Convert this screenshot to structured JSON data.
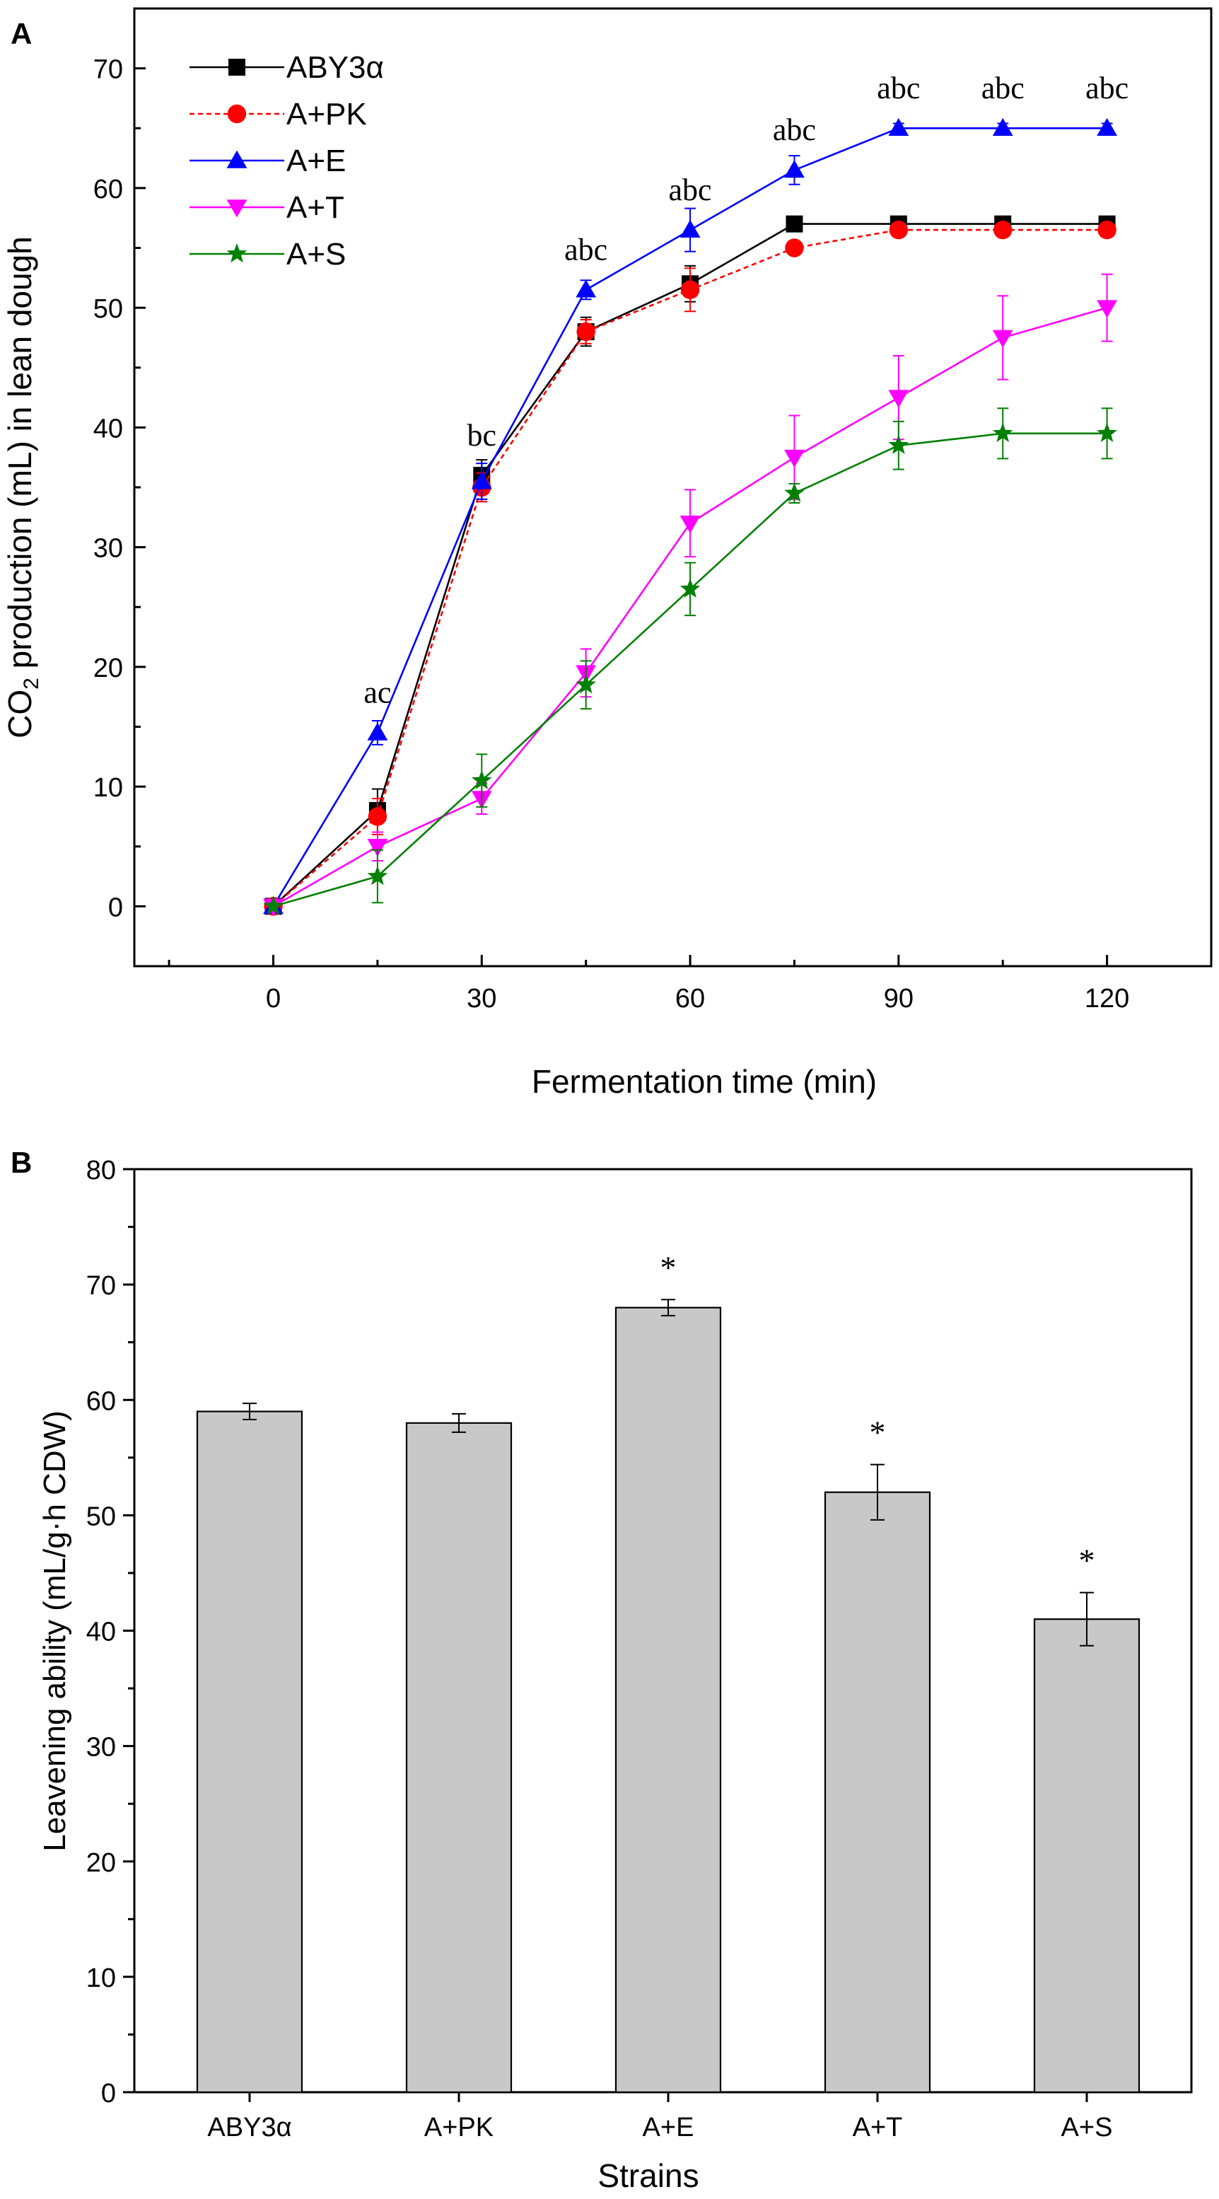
{
  "chart_data": [
    {
      "panel_label": "A",
      "type": "line",
      "xlabel": "Fermentation time (min)",
      "ylabel_pre": "CO",
      "ylabel_sub": "2",
      "ylabel_post": " production (mL) in lean dough",
      "x": [
        0,
        15,
        30,
        45,
        60,
        75,
        90,
        105,
        120
      ],
      "xlim": [
        -20,
        135
      ],
      "ylim": [
        -5,
        75
      ],
      "xticks": [
        0,
        30,
        60,
        90,
        120
      ],
      "yticks": [
        0,
        10,
        20,
        30,
        40,
        50,
        60,
        70
      ],
      "legend_position": "top-left",
      "series": [
        {
          "name": "ABY3α",
          "color": "#000000",
          "marker": "square",
          "dash": "solid",
          "values": [
            0,
            8,
            36,
            48,
            52,
            57,
            57,
            57,
            57
          ],
          "errors": [
            0,
            1.8,
            1.3,
            1.2,
            1.5,
            0.3,
            0.3,
            0.3,
            0.3
          ]
        },
        {
          "name": "A+PK",
          "color": "#ff0000",
          "marker": "circle",
          "dash": "dashed",
          "values": [
            0,
            7.5,
            35,
            48,
            51.5,
            55,
            56.5,
            56.5,
            56.5
          ],
          "errors": [
            0,
            1.5,
            1.2,
            1.0,
            1.8,
            0.5,
            0.5,
            0.5,
            0.5
          ]
        },
        {
          "name": "A+E",
          "color": "#0000ff",
          "marker": "triangle-up",
          "dash": "solid",
          "values": [
            0,
            14.5,
            35.5,
            51.5,
            56.5,
            61.5,
            65,
            65,
            65
          ],
          "errors": [
            0,
            1.0,
            1.5,
            0.8,
            1.8,
            1.2,
            0.4,
            0.4,
            0.4
          ]
        },
        {
          "name": "A+T",
          "color": "#ff00ff",
          "marker": "triangle-down",
          "dash": "solid",
          "values": [
            0,
            5,
            9,
            19.5,
            32,
            37.5,
            42.5,
            47.5,
            50
          ],
          "errors": [
            0,
            1.2,
            1.3,
            2.0,
            2.8,
            3.5,
            3.5,
            3.5,
            2.8
          ]
        },
        {
          "name": "A+S",
          "color": "#008000",
          "marker": "star",
          "dash": "solid",
          "values": [
            0,
            2.5,
            10.5,
            18.5,
            26.5,
            34.5,
            38.5,
            39.5,
            39.5
          ],
          "errors": [
            0,
            2.2,
            2.2,
            2.0,
            2.2,
            0.8,
            2.0,
            2.1,
            2.1
          ]
        }
      ],
      "annotations": [
        {
          "x": 15,
          "y": 17,
          "text": "ac"
        },
        {
          "x": 30,
          "y": 38.5,
          "text": "bc"
        },
        {
          "x": 45,
          "y": 54,
          "text": "abc"
        },
        {
          "x": 60,
          "y": 59,
          "text": "abc"
        },
        {
          "x": 75,
          "y": 64,
          "text": "abc"
        },
        {
          "x": 90,
          "y": 67.5,
          "text": "abc"
        },
        {
          "x": 105,
          "y": 67.5,
          "text": "abc"
        },
        {
          "x": 120,
          "y": 67.5,
          "text": "abc"
        }
      ]
    },
    {
      "panel_label": "B",
      "type": "bar",
      "xlabel": "Strains",
      "ylabel": "Leavening ability (mL/g·h CDW)",
      "categories": [
        "ABY3α",
        "A+PK",
        "A+E",
        "A+T",
        "A+S"
      ],
      "values": [
        59,
        58,
        68,
        52,
        41
      ],
      "errors": [
        0.7,
        0.8,
        0.7,
        2.4,
        2.3
      ],
      "ylim": [
        0,
        80
      ],
      "yticks": [
        0,
        10,
        20,
        30,
        40,
        50,
        60,
        70,
        80
      ],
      "bar_color": "#c8c8c8",
      "significance": [
        "",
        "",
        "*",
        "*",
        "*"
      ]
    }
  ]
}
